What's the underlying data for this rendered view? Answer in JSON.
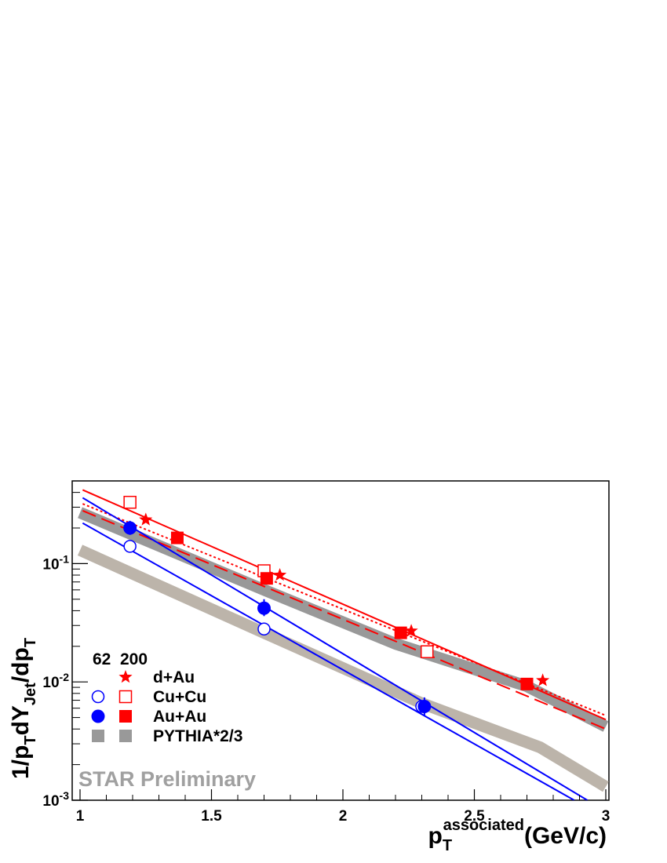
{
  "chart_data": {
    "type": "scatter",
    "xlabel": {
      "base": "p",
      "sub": "T",
      "sup": "associated",
      "suffix": "(GeV/c)"
    },
    "ylabel": {
      "p1": "1/p",
      "s1": "T",
      "p2": "dY",
      "s2": "Jet",
      "p3": "/dp",
      "s3": "T"
    },
    "xlim": [
      1,
      3
    ],
    "ylim": [
      0.001,
      0.5
    ],
    "yscale": "log",
    "x_ticks": [
      {
        "value": 1,
        "label": "1"
      },
      {
        "value": 1.5,
        "label": "1.5"
      },
      {
        "value": 2,
        "label": "2"
      },
      {
        "value": 2.5,
        "label": "2.5"
      },
      {
        "value": 3,
        "label": "3"
      }
    ],
    "y_ticks": [
      {
        "value": 0.1,
        "base": "10",
        "exp": "-1"
      },
      {
        "value": 0.01,
        "base": "10",
        "exp": "-2"
      },
      {
        "value": 0.001,
        "base": "10",
        "exp": "-3"
      }
    ],
    "colors": {
      "red": "#ff0000",
      "blue": "#0000ff",
      "gray": "#999999",
      "tan": "#bcb4aa"
    },
    "bands": [
      {
        "id": "pythia-200",
        "color": "#999999",
        "x": [
          1,
          1.7,
          2.2,
          2.7,
          3
        ],
        "y": [
          0.27,
          0.06,
          0.021,
          0.0092,
          0.0042
        ]
      },
      {
        "id": "pythia-62",
        "color": "#bcb4aa",
        "x": [
          1,
          1.7,
          2.3,
          2.75,
          3
        ],
        "y": [
          0.13,
          0.026,
          0.0066,
          0.0028,
          0.0013
        ]
      }
    ],
    "lines": [
      {
        "id": "dau-200-fit",
        "color": "#ff0000",
        "dash": "",
        "x1": 1.01,
        "y1": 0.42,
        "x2": 3,
        "y2": 0.0048
      },
      {
        "id": "cucu-200-fit",
        "color": "#ff0000",
        "dash": "3,3",
        "x1": 1.01,
        "y1": 0.32,
        "x2": 3,
        "y2": 0.0052
      },
      {
        "id": "auau-200-fit",
        "color": "#ff0000",
        "dash": "18,8",
        "x1": 1.01,
        "y1": 0.28,
        "x2": 3,
        "y2": 0.004
      },
      {
        "id": "auau-62-fit",
        "color": "#0000ff",
        "dash": "",
        "x1": 1.01,
        "y1": 0.36,
        "x2": 2.93,
        "y2": 0.001
      },
      {
        "id": "cucu-62-fit",
        "color": "#0000ff",
        "dash": "",
        "x1": 1.01,
        "y1": 0.22,
        "x2": 2.88,
        "y2": 0.001
      }
    ],
    "series": [
      {
        "name": "d+Au",
        "energy": "200",
        "marker": "star",
        "color": "#ff0000",
        "points": [
          {
            "x": 1.25,
            "y": 0.235
          },
          {
            "x": 1.76,
            "y": 0.08
          },
          {
            "x": 2.26,
            "y": 0.027
          },
          {
            "x": 2.76,
            "y": 0.0103
          }
        ]
      },
      {
        "name": "Cu+Cu",
        "energy": "200",
        "marker": "open-square",
        "color": "#ff0000",
        "points": [
          {
            "x": 1.19,
            "y": 0.33
          },
          {
            "x": 1.7,
            "y": 0.087
          },
          {
            "x": 2.32,
            "y": 0.018
          }
        ]
      },
      {
        "name": "Au+Au",
        "energy": "200",
        "marker": "filled-square",
        "color": "#ff0000",
        "points": [
          {
            "x": 1.37,
            "y": 0.165
          },
          {
            "x": 1.71,
            "y": 0.075
          },
          {
            "x": 2.22,
            "y": 0.026
          },
          {
            "x": 2.7,
            "y": 0.0096
          }
        ]
      },
      {
        "name": "Cu+Cu",
        "energy": "62",
        "marker": "open-circle",
        "color": "#0000ff",
        "points": [
          {
            "x": 1.19,
            "y": 0.14
          },
          {
            "x": 1.7,
            "y": 0.028
          },
          {
            "x": 2.3,
            "y": 0.0062
          }
        ]
      },
      {
        "name": "Au+Au",
        "energy": "62",
        "marker": "filled-circle",
        "color": "#0000ff",
        "points": [
          {
            "x": 1.19,
            "y": 0.2,
            "err": [
              0.175,
              0.23
            ]
          },
          {
            "x": 1.7,
            "y": 0.042,
            "err": [
              0.036,
              0.05
            ]
          },
          {
            "x": 2.31,
            "y": 0.0062,
            "err": [
              0.0052,
              0.0074
            ]
          }
        ]
      }
    ],
    "legend": {
      "placement": "bottom-left",
      "headers": [
        "62",
        "200"
      ],
      "rows": [
        {
          "label": "d+Au",
          "left": "",
          "right": "star"
        },
        {
          "label": "Cu+Cu",
          "left": "open-circle",
          "right": "open-square"
        },
        {
          "label": "Au+Au",
          "left": "filled-circle",
          "right": "filled-square"
        },
        {
          "label": "PYTHIA*2/3",
          "left": "gray-square",
          "right": "gray-square"
        }
      ]
    },
    "watermark": "STAR Preliminary"
  }
}
